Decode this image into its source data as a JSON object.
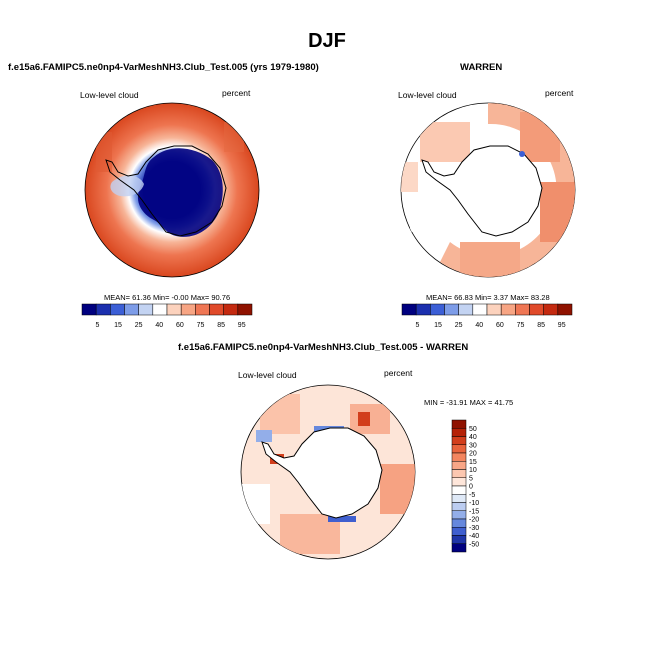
{
  "title": "DJF",
  "panels": [
    {
      "title": "f.e15a6.FAMIPC5.ne0np4-VarMeshNH3.Club_Test.005 (yrs 1979-1980)",
      "left_label": "Low-level cloud",
      "right_label": "percent",
      "stats": "MEAN=  61.36  Min=  -0.00  Max=  90.76"
    },
    {
      "title": "WARREN",
      "left_label": "Low-level cloud",
      "right_label": "percent",
      "stats": "MEAN=  66.83  Min=   3.37  Max=  83.28"
    },
    {
      "title": "f.e15a6.FAMIPC5.ne0np4-VarMeshNH3.Club_Test.005 - WARREN",
      "left_label": "Low-level cloud",
      "right_label": "percent",
      "stats": "MIN = -31.91  MAX =  41.75"
    }
  ],
  "colorbar_abs": {
    "labels": [
      "5",
      "15",
      "25",
      "40",
      "60",
      "75",
      "85",
      "95"
    ],
    "colors": [
      "#00007f",
      "#1b2fae",
      "#3c5fd6",
      "#7d9ce8",
      "#c3d3f2",
      "#ffffff",
      "#fcd2bd",
      "#f7a584",
      "#ef7654",
      "#e04a2a",
      "#c42a10",
      "#8f1200"
    ]
  },
  "colorbar_diff": {
    "labels": [
      "50",
      "40",
      "30",
      "20",
      "15",
      "10",
      "5",
      "0",
      "-5",
      "-10",
      "-15",
      "-20",
      "-30",
      "-40",
      "-50"
    ],
    "colors": [
      "#8f1200",
      "#b52107",
      "#d23e1c",
      "#e8633c",
      "#f3855f",
      "#f8a687",
      "#fcc7b0",
      "#fee6da",
      "#ffffff",
      "#dfe9f7",
      "#bccdf1",
      "#93aee9",
      "#6688dd",
      "#3f5fcf",
      "#1f35a8",
      "#00007f"
    ]
  }
}
